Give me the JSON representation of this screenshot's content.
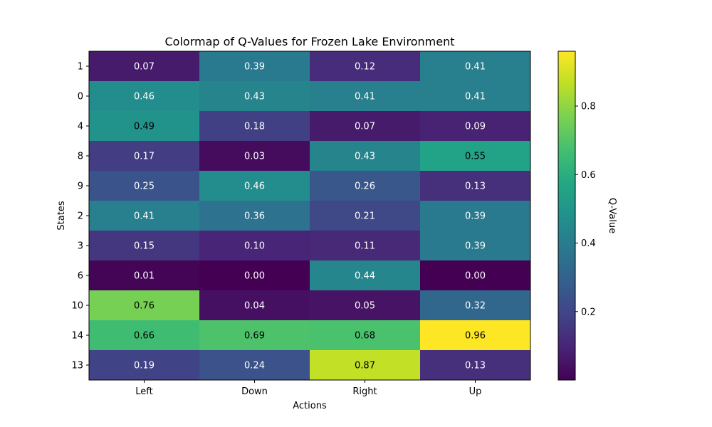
{
  "chart_data": {
    "type": "heatmap",
    "title": "Colormap of Q-Values for Frozen Lake Environment",
    "xlabel": "Actions",
    "ylabel": "States",
    "x_categories": [
      "Left",
      "Down",
      "Right",
      "Up"
    ],
    "y_categories": [
      "1",
      "0",
      "4",
      "8",
      "9",
      "2",
      "3",
      "6",
      "10",
      "14",
      "13"
    ],
    "values": [
      [
        0.07,
        0.39,
        0.12,
        0.41
      ],
      [
        0.46,
        0.43,
        0.41,
        0.41
      ],
      [
        0.49,
        0.18,
        0.07,
        0.09
      ],
      [
        0.17,
        0.03,
        0.43,
        0.55
      ],
      [
        0.25,
        0.46,
        0.26,
        0.13
      ],
      [
        0.41,
        0.36,
        0.21,
        0.39
      ],
      [
        0.15,
        0.1,
        0.11,
        0.39
      ],
      [
        0.01,
        0.0,
        0.44,
        0.0
      ],
      [
        0.76,
        0.04,
        0.05,
        0.32
      ],
      [
        0.66,
        0.69,
        0.68,
        0.96
      ],
      [
        0.19,
        0.24,
        0.87,
        0.13
      ]
    ],
    "value_format": "0.00",
    "colormap": "viridis",
    "vmin": 0.0,
    "vmax": 0.96,
    "colorbar": {
      "label": "Q-Value",
      "ticks": [
        0.2,
        0.4,
        0.6,
        0.8
      ],
      "tick_labels": [
        "0.2",
        "0.4",
        "0.6",
        "0.8"
      ]
    },
    "grid": false
  }
}
